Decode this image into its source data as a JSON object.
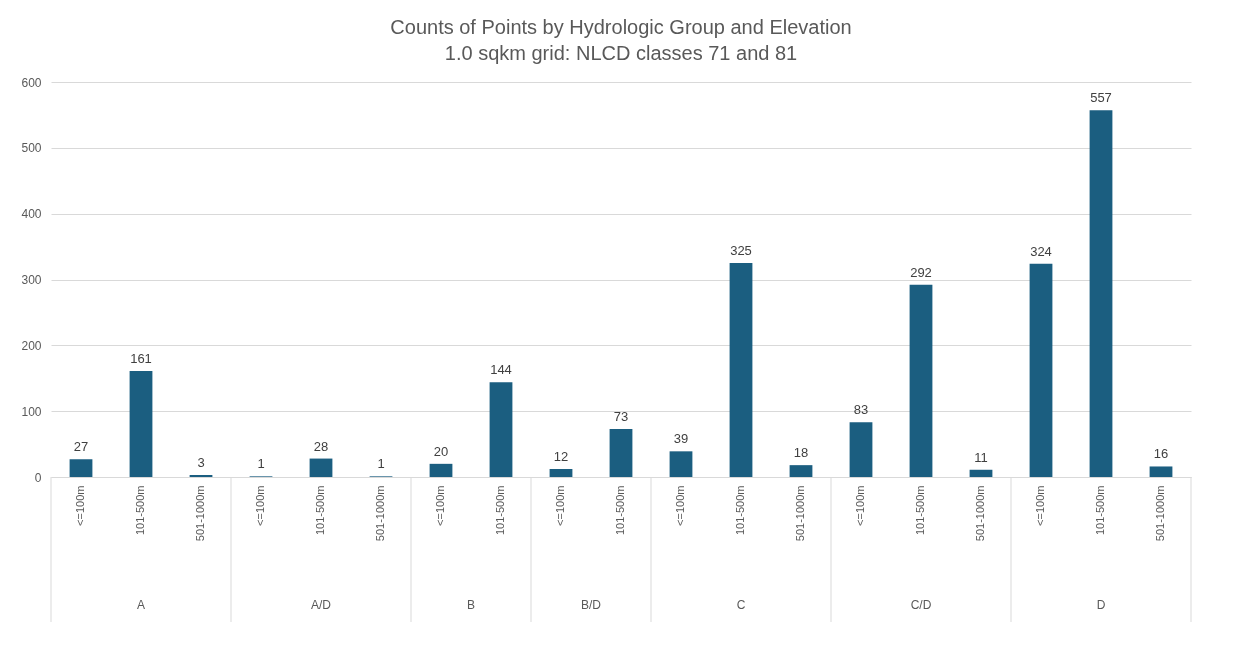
{
  "chart_data": {
    "type": "bar",
    "title": "Counts of Points by Hydrologic Group and Elevation",
    "subtitle": "1.0 sqkm grid: NLCD classes 71 and 81",
    "categories": [
      "<=100m",
      "101-500m",
      "501-1000m",
      "<=100m",
      "101-500m",
      "501-1000m",
      "<=100m",
      "101-500m",
      "<=100m",
      "101-500m",
      "<=100m",
      "101-500m",
      "501-1000m",
      "<=100m",
      "101-500m",
      "501-1000m",
      "<=100m",
      "101-500m",
      "501-1000m"
    ],
    "values": [
      27,
      161,
      3,
      1,
      28,
      1,
      20,
      144,
      12,
      73,
      39,
      325,
      18,
      83,
      292,
      11,
      324,
      557,
      16
    ],
    "color": "#1b5e80",
    "data_labels": true,
    "ylim": [
      0,
      600
    ],
    "yticks": [
      0,
      100,
      200,
      300,
      400,
      500,
      600
    ],
    "grid": "y",
    "legend": false,
    "annotations": [
      "A",
      "A/D",
      "B",
      "B/D",
      "C",
      "C/D",
      "D"
    ]
  }
}
